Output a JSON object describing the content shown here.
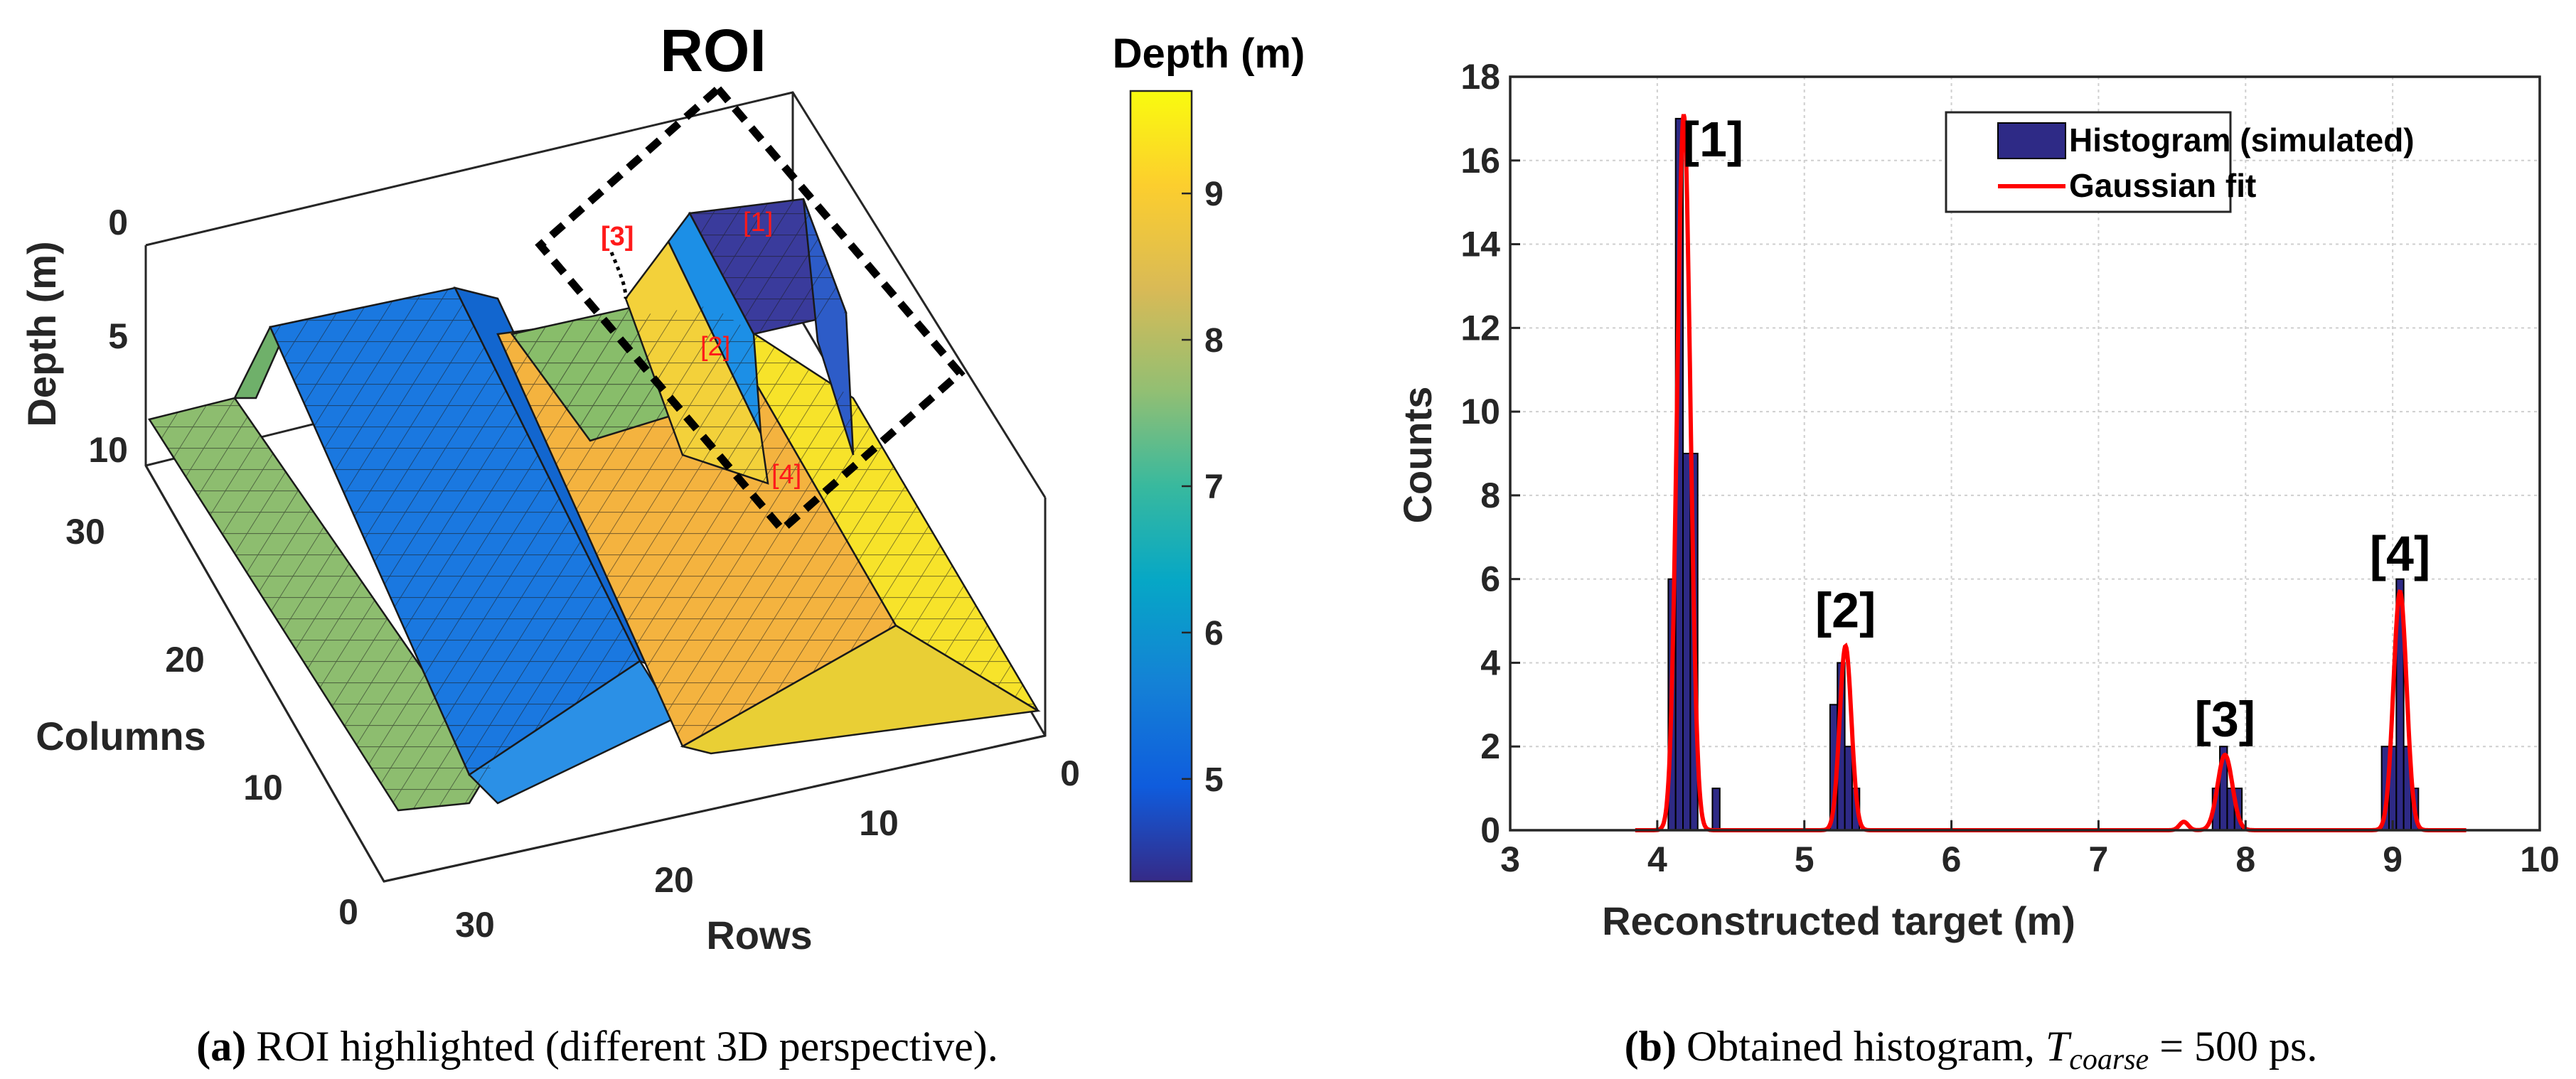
{
  "panel_a": {
    "title": "ROI",
    "zlabel": "Depth (m)",
    "ylabel": "Columns",
    "xlabel": "Rows",
    "z_ticks": [
      "0",
      "5",
      "10"
    ],
    "col_ticks": [
      "30",
      "20",
      "10",
      "0"
    ],
    "row_ticks": [
      "30",
      "20",
      "10",
      "0"
    ],
    "annotations": [
      "[1]",
      "[2]",
      "[3]",
      "[4]"
    ],
    "colorbar": {
      "label": "Depth (m)",
      "ticks": [
        9,
        8,
        7,
        6,
        5
      ],
      "range": [
        4.3,
        9.7
      ]
    },
    "caption_prefix": "(a)",
    "caption_text": "ROI highlighted (different 3D perspective)."
  },
  "chart_data": {
    "type": "bar",
    "title": "",
    "xlabel": "Reconstructed target (m)",
    "ylabel": "Counts",
    "xlim": [
      3,
      10
    ],
    "ylim": [
      0,
      18
    ],
    "x_ticks": [
      3,
      4,
      5,
      6,
      7,
      8,
      9,
      10
    ],
    "y_ticks": [
      0,
      2,
      4,
      6,
      8,
      10,
      12,
      14,
      16,
      18
    ],
    "grid": true,
    "legend_position": "top-right",
    "bin_width": 0.05,
    "series": [
      {
        "name": "Histogram (simulated)",
        "color": "#2e2a86",
        "x": [
          4.1,
          4.15,
          4.2,
          4.25,
          4.4,
          5.2,
          5.25,
          5.3,
          5.35,
          7.8,
          7.85,
          7.9,
          7.95,
          8.95,
          9.0,
          9.05,
          9.1,
          9.15
        ],
        "values": [
          6,
          17,
          9,
          9,
          1,
          3,
          4,
          2,
          1,
          1,
          2,
          1,
          1,
          2,
          2,
          6,
          2,
          1
        ]
      },
      {
        "name": "Gaussian fit",
        "color": "#ff0000",
        "peaks": [
          {
            "mu": 4.18,
            "sigma": 0.045,
            "amp": 17.1
          },
          {
            "mu": 5.28,
            "sigma": 0.04,
            "amp": 4.4
          },
          {
            "mu": 7.86,
            "sigma": 0.05,
            "amp": 1.8
          },
          {
            "mu": 7.58,
            "sigma": 0.03,
            "amp": 0.2
          },
          {
            "mu": 9.05,
            "sigma": 0.045,
            "amp": 5.7
          }
        ]
      }
    ],
    "annotations": [
      {
        "text": "[1]",
        "x": 4.38,
        "y": 16.1
      },
      {
        "text": "[2]",
        "x": 5.28,
        "y": 4.85
      },
      {
        "text": "[3]",
        "x": 7.86,
        "y": 2.25
      },
      {
        "text": "[4]",
        "x": 9.05,
        "y": 6.2
      }
    ]
  },
  "panel_b_caption": {
    "prefix": "(b)",
    "text": "Obtained histogram, ",
    "symbol": "T",
    "subscript": "coarse",
    "rest": " = 500 ps."
  }
}
